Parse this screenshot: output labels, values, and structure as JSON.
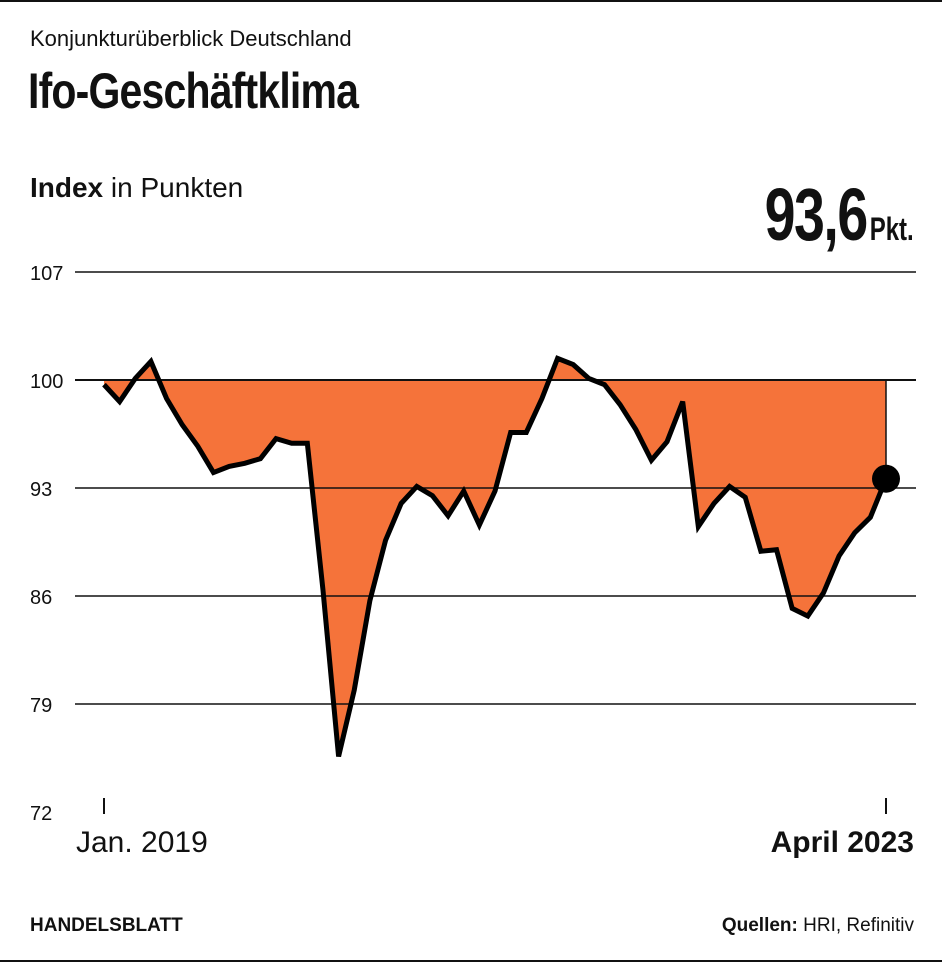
{
  "header": {
    "kicker": "Konjunkturüberblick Deutschland",
    "title": "Ifo-Geschäftklima"
  },
  "unit_bold": "Index",
  "unit_rest": " in Punkten",
  "latest": {
    "value": "93,6",
    "unit": "Pkt."
  },
  "footer": {
    "brand": "HANDELSBLATT",
    "source_label": "Quellen:",
    "source_text": " HRI, Refinitiv"
  },
  "colors": {
    "fill": "#F5733A",
    "line": "#000000"
  },
  "chart_data": {
    "type": "area",
    "title": "Ifo-Geschäftklima",
    "ylabel": "Index in Punkten",
    "ylim": [
      72,
      107
    ],
    "yticks": [
      "107",
      "100",
      "93",
      "86",
      "79",
      "72"
    ],
    "ytick_values": [
      107,
      100,
      93,
      86,
      79,
      72
    ],
    "baseline": 100,
    "x_start_label": "Jan. 2019",
    "x_end_label": "April 2023",
    "values": [
      99.7,
      98.6,
      100.1,
      101.2,
      98.8,
      97.1,
      95.7,
      94.0,
      94.4,
      94.6,
      94.9,
      96.2,
      95.9,
      95.9,
      86.4,
      75.6,
      79.9,
      85.7,
      89.6,
      92.0,
      93.1,
      92.5,
      91.2,
      92.8,
      90.6,
      92.8,
      96.6,
      96.6,
      98.8,
      101.4,
      101.0,
      100.1,
      99.7,
      98.4,
      96.8,
      94.8,
      96.0,
      98.6,
      90.5,
      92.0,
      93.1,
      92.4,
      88.9,
      89.0,
      85.2,
      84.7,
      86.2,
      88.6,
      90.1,
      91.1,
      93.6
    ]
  }
}
